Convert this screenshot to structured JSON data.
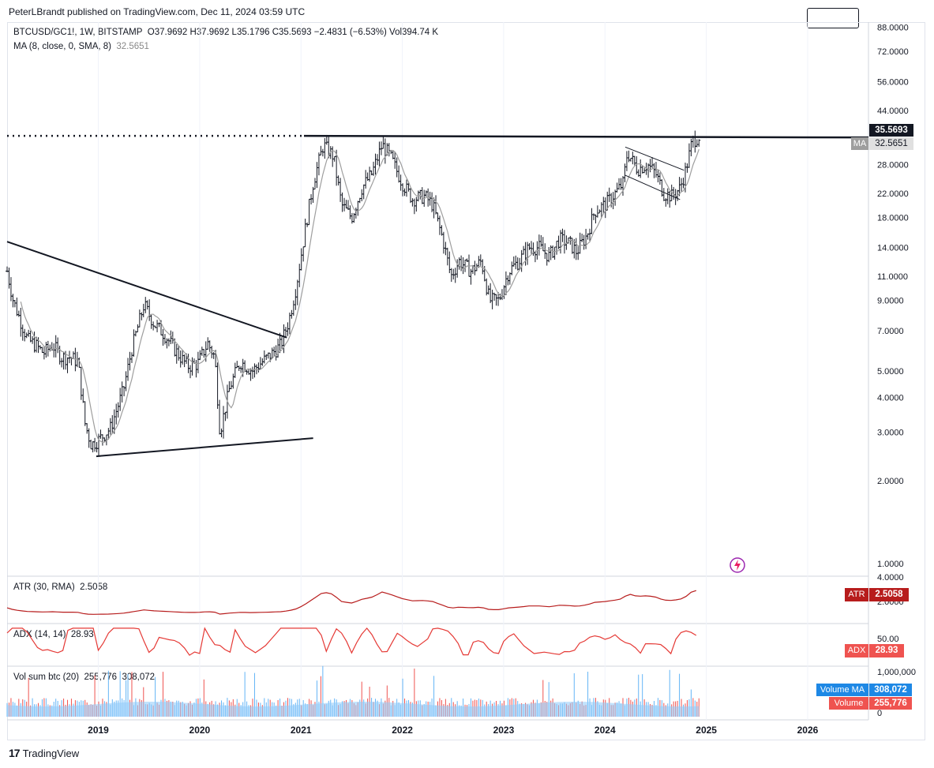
{
  "header": {
    "published": "PeterLBrandt published on TradingView.com, Dec 11, 2024 03:59 UTC"
  },
  "legend": {
    "symbol": "BTCUSD/GC1!, 1W, BITSTAMP",
    "ohlc": "O37.9692 H37.9692 L35.1796 C35.5693 −2.4831 (−6.53%) Vol394.74 K",
    "ma_label": "MA (8, close, 0, SMA, 8)",
    "ma_value": "32.5651"
  },
  "indicators": {
    "atr_label": "ATR (30, RMA)",
    "atr_value": "2.5058",
    "adx_label": "ADX (14, 14)",
    "adx_value": "28.93",
    "vol_label": "Vol sum btc (20)",
    "vol_value": "255,776",
    "vol_ma_value": "308,072"
  },
  "badges": {
    "price": "35.5693",
    "ma_tag": "MA",
    "ma_val": "32.5651",
    "atr_tag": "ATR",
    "atr_val": "2.5058",
    "adx_tag": "ADX",
    "adx_val": "28.93",
    "volma_tag": "Volume MA",
    "volma_val": "308,072",
    "vol_tag": "Volume",
    "vol_val": "255,776"
  },
  "colors": {
    "bar": "#131722",
    "ma": "#9e9e9e",
    "atr": "#b71c1c",
    "adx": "#e53935",
    "vol_ma": "#90caf9",
    "vol_bar": "#64b5f6",
    "vol_bar_red": "#ef5350",
    "badge_dark": "#131722",
    "badge_atr": "#b71c1c",
    "badge_adx": "#e53935",
    "badge_blue": "#1e88e5",
    "badge_red": "#ef5350",
    "icon": "#9c27b0"
  },
  "footer": {
    "brand": "TradingView"
  },
  "chart_data": {
    "type": "bar",
    "scale": "log",
    "price_ticks": [
      88,
      72,
      56,
      44,
      35.5693,
      28,
      22,
      18,
      14,
      11,
      9,
      7,
      5,
      4,
      3,
      2,
      1
    ],
    "price_tick_labels": [
      "88.0000",
      "72.0000",
      "56.0000",
      "44.0000",
      "35.5693",
      "28.0000",
      "22.0000",
      "18.0000",
      "14.0000",
      "11.0000",
      "9.0000",
      "7.0000",
      "5.0000",
      "4.0000",
      "3.0000",
      "2.0000",
      "1.0000"
    ],
    "atr_ticks": [
      "4.0000",
      "2.0000"
    ],
    "adx_ticks": [
      "50.00"
    ],
    "vol_ticks": [
      "1,000,000",
      "0"
    ],
    "x_ticks": [
      "2019",
      "2020",
      "2021",
      "2022",
      "2023",
      "2024",
      "2025",
      "2026"
    ],
    "x_range": [
      2018.1,
      2026.6
    ],
    "y_range": [
      0.9,
      92
    ],
    "price_path": [
      [
        2018.1,
        11.5
      ],
      [
        2018.16,
        9.0
      ],
      [
        2018.22,
        7.8
      ],
      [
        2018.3,
        6.5
      ],
      [
        2018.38,
        6.2
      ],
      [
        2018.46,
        5.8
      ],
      [
        2018.55,
        6.2
      ],
      [
        2018.64,
        5.6
      ],
      [
        2018.72,
        5.6
      ],
      [
        2018.8,
        5.4
      ],
      [
        2018.87,
        3.2
      ],
      [
        2018.93,
        2.7
      ],
      [
        2019.0,
        2.8
      ],
      [
        2019.12,
        3.1
      ],
      [
        2019.25,
        4.3
      ],
      [
        2019.33,
        6.0
      ],
      [
        2019.45,
        8.7
      ],
      [
        2019.55,
        7.4
      ],
      [
        2019.65,
        6.8
      ],
      [
        2019.78,
        5.8
      ],
      [
        2019.88,
        5.2
      ],
      [
        2019.98,
        5.3
      ],
      [
        2020.08,
        6.3
      ],
      [
        2020.15,
        5.6
      ],
      [
        2020.2,
        3.0
      ],
      [
        2020.3,
        4.4
      ],
      [
        2020.4,
        5.4
      ],
      [
        2020.52,
        5.0
      ],
      [
        2020.62,
        5.4
      ],
      [
        2020.72,
        5.8
      ],
      [
        2020.8,
        6.2
      ],
      [
        2020.88,
        7.6
      ],
      [
        2020.95,
        10.0
      ],
      [
        2021.05,
        17.0
      ],
      [
        2021.12,
        24.0
      ],
      [
        2021.22,
        33.0
      ],
      [
        2021.32,
        30.0
      ],
      [
        2021.4,
        20.0
      ],
      [
        2021.5,
        18.0
      ],
      [
        2021.6,
        23.0
      ],
      [
        2021.7,
        26.0
      ],
      [
        2021.8,
        33.0
      ],
      [
        2021.88,
        30.0
      ],
      [
        2022.0,
        24.0
      ],
      [
        2022.1,
        21.0
      ],
      [
        2022.22,
        21.5
      ],
      [
        2022.3,
        20.0
      ],
      [
        2022.4,
        15.0
      ],
      [
        2022.48,
        11.0
      ],
      [
        2022.56,
        12.5
      ],
      [
        2022.68,
        11.5
      ],
      [
        2022.78,
        12.5
      ],
      [
        2022.86,
        9.0
      ],
      [
        2022.95,
        9.0
      ],
      [
        2023.05,
        11.5
      ],
      [
        2023.15,
        12.5
      ],
      [
        2023.25,
        14.0
      ],
      [
        2023.35,
        14.0
      ],
      [
        2023.45,
        13.0
      ],
      [
        2023.55,
        15.0
      ],
      [
        2023.65,
        14.5
      ],
      [
        2023.72,
        13.5
      ],
      [
        2023.82,
        15.5
      ],
      [
        2023.9,
        19.0
      ],
      [
        2024.0,
        20.0
      ],
      [
        2024.1,
        22.0
      ],
      [
        2024.18,
        24.0
      ],
      [
        2024.22,
        31.0
      ],
      [
        2024.32,
        27.0
      ],
      [
        2024.42,
        28.0
      ],
      [
        2024.5,
        26.0
      ],
      [
        2024.58,
        22.0
      ],
      [
        2024.66,
        21.5
      ],
      [
        2024.74,
        23.0
      ],
      [
        2024.8,
        27.0
      ],
      [
        2024.86,
        34.0
      ],
      [
        2024.93,
        35.5693
      ]
    ],
    "ma_value": 32.5651,
    "horizontal_level": 35.5693,
    "trendlines": [
      {
        "from": [
          2018.1,
          14.7
        ],
        "to": [
          2020.86,
          6.6
        ]
      },
      {
        "from": [
          2018.98,
          2.45
        ],
        "to": [
          2021.12,
          2.85
        ]
      },
      {
        "from": [
          2024.2,
          32.4
        ],
        "to": [
          2024.78,
          26.7
        ]
      },
      {
        "from": [
          2024.2,
          25.6
        ],
        "to": [
          2024.74,
          20.9
        ]
      }
    ]
  }
}
